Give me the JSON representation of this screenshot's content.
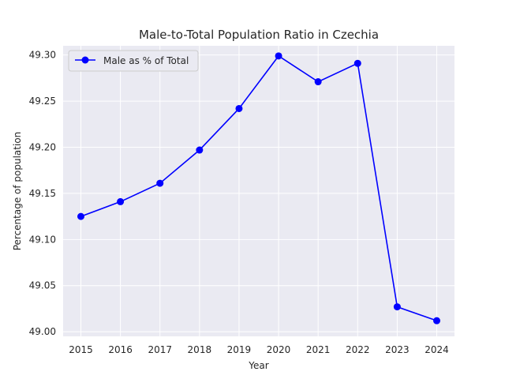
{
  "chart_data": {
    "type": "line",
    "title": "Male-to-Total Population Ratio in Czechia",
    "xlabel": "Year",
    "ylabel": "Percentage of population",
    "categories": [
      "2015",
      "2016",
      "2017",
      "2018",
      "2019",
      "2020",
      "2021",
      "2022",
      "2023",
      "2024"
    ],
    "series": [
      {
        "name": "Male as % of Total",
        "color": "#0000ff",
        "values": [
          49.125,
          49.141,
          49.161,
          49.197,
          49.242,
          49.299,
          49.271,
          49.291,
          49.027,
          49.012
        ]
      }
    ],
    "ylim": [
      48.995,
      49.31
    ],
    "yticks": [
      "49.00",
      "49.05",
      "49.10",
      "49.15",
      "49.20",
      "49.25",
      "49.30"
    ],
    "grid": true,
    "legend_position": "top-left",
    "background": "#eaeaf2"
  }
}
